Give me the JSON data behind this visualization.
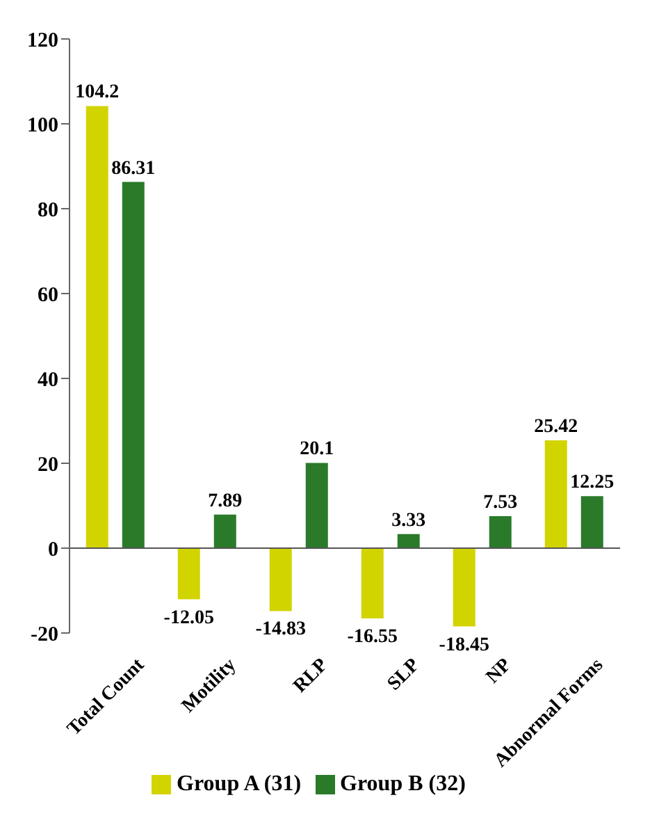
{
  "chart_data": {
    "type": "bar",
    "categories": [
      "Total Count",
      "Motility",
      "RLP",
      "SLP",
      "NP",
      "Abnormal Forms"
    ],
    "series": [
      {
        "name": "Group A (31)",
        "color": "#d2d400",
        "values": [
          104.2,
          -12.05,
          -14.83,
          -16.55,
          -18.45,
          25.42
        ]
      },
      {
        "name": "Group B (32)",
        "color": "#2a7a2a",
        "values": [
          86.31,
          7.89,
          20.1,
          3.33,
          7.53,
          12.25
        ]
      }
    ],
    "ylim": [
      -20,
      120
    ],
    "yticks": [
      -20,
      0,
      20,
      40,
      60,
      80,
      100,
      120
    ],
    "legend": "bottom",
    "data_labels": true
  }
}
